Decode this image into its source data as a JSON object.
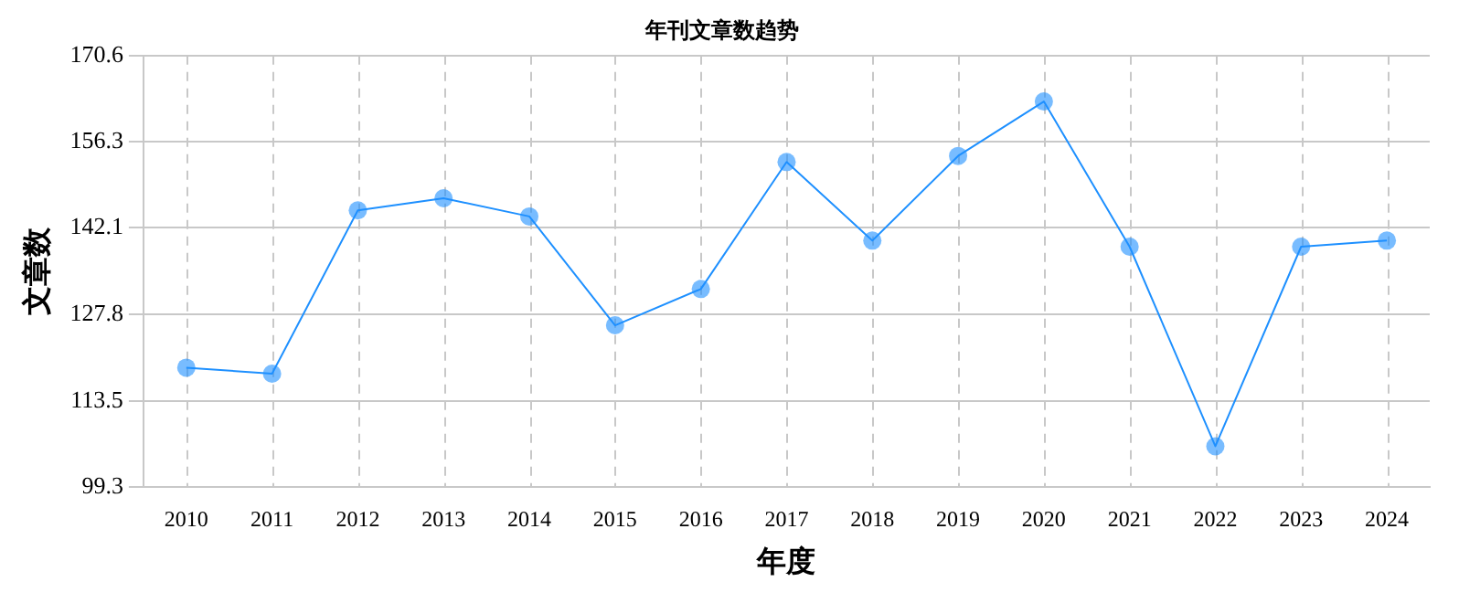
{
  "chart_data": {
    "type": "line",
    "title": "年刊文章数趋势",
    "xlabel": "年度",
    "ylabel": "文章数",
    "categories": [
      "2010",
      "2011",
      "2012",
      "2013",
      "2014",
      "2015",
      "2016",
      "2017",
      "2018",
      "2019",
      "2020",
      "2021",
      "2022",
      "2023",
      "2024"
    ],
    "series": [
      {
        "color": "#1e90ff",
        "values": [
          119,
          118,
          145,
          147,
          144,
          126,
          132,
          153,
          140,
          154,
          163,
          139,
          106,
          139,
          140
        ]
      }
    ],
    "ylim": [
      99.3,
      170.6
    ],
    "yticks": [
      99.3,
      113.5,
      127.8,
      142.1,
      156.3,
      170.6
    ],
    "grid": true,
    "marker": "circle",
    "line_style": "solid",
    "legend": false
  }
}
